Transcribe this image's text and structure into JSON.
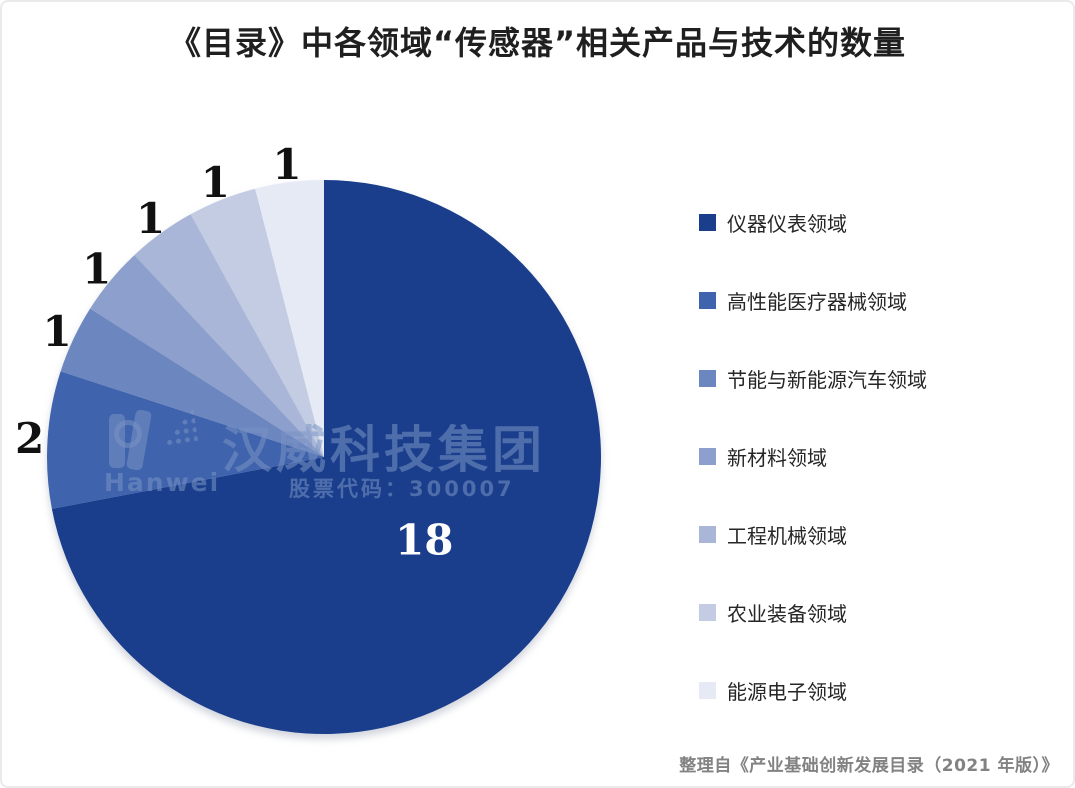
{
  "title": "《目录》中各领域“传感器”相关产品与技术的数量",
  "chart_data": {
    "type": "pie",
    "title": "《目录》中各领域“传感器”相关产品与技术的数量",
    "start_angle_deg": 0,
    "direction": "clockwise",
    "legend_position": "right",
    "total": 25,
    "series": [
      {
        "label": "仪器仪表领域",
        "value": 18,
        "color": "#1a3e8c",
        "data_label": "18"
      },
      {
        "label": "高性能医疗器械领域",
        "value": 2,
        "color": "#3f63ac",
        "data_label": "2"
      },
      {
        "label": "节能与新能源汽车领域",
        "value": 1,
        "color": "#6c86bf",
        "data_label": "1"
      },
      {
        "label": "新材料领域",
        "value": 1,
        "color": "#8d9fcc",
        "data_label": "1"
      },
      {
        "label": "工程机械领域",
        "value": 1,
        "color": "#a9b6d7",
        "data_label": "1"
      },
      {
        "label": "农业装备领域",
        "value": 1,
        "color": "#c3cce3",
        "data_label": "1"
      },
      {
        "label": "能源电子领域",
        "value": 1,
        "color": "#e6eaf4",
        "data_label": "1"
      }
    ]
  },
  "watermark": {
    "company": "汉威科技集团",
    "stock_label": "股票代码：300007",
    "logo_text": "Hanwei"
  },
  "source_note": "整理自《产业基础创新发展目录（2021 年版）》",
  "colors": {
    "inside_label": "#ffffff",
    "outside_label": "#111111",
    "title_text": "#1f1f1f",
    "legend_text": "#262626",
    "source_text": "#828282"
  }
}
